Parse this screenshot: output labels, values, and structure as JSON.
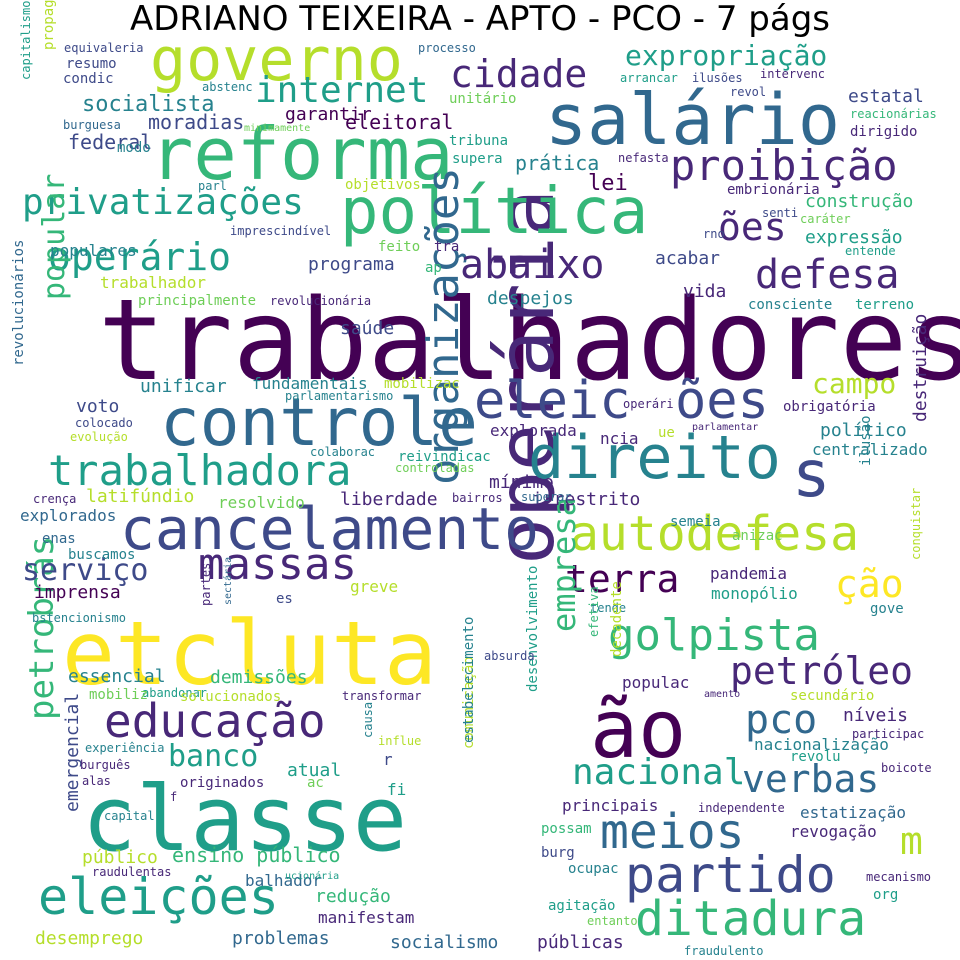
{
  "title": "ADRIANO TEIXEIRA - APTO - PCO - 7 págs",
  "palette": {
    "dark_purple": "#440154",
    "indigo": "#482878",
    "blue": "#3e4a89",
    "steel_blue": "#31688e",
    "teal": "#26828e",
    "green_teal": "#1f9e89",
    "green": "#35b779",
    "light_green": "#6ece58",
    "lime": "#b5de2b",
    "yellow": "#fde725",
    "background": "#ffffff"
  },
  "words": [
    {
      "text": "trabalhadores",
      "color": "dark_purple"
    },
    {
      "text": "operária",
      "color": "indigo"
    },
    {
      "text": "classe",
      "color": "green_teal"
    },
    {
      "text": "luta",
      "color": "yellow"
    },
    {
      "text": "etc",
      "color": "yellow"
    },
    {
      "text": "salário",
      "color": "steel_blue"
    },
    {
      "text": "reforma",
      "color": "green"
    },
    {
      "text": "política",
      "color": "green"
    },
    {
      "text": "governo",
      "color": "lime"
    },
    {
      "text": "ão",
      "color": "dark_purple"
    },
    {
      "text": "controle",
      "color": "steel_blue"
    },
    {
      "text": "direito",
      "color": "teal"
    },
    {
      "text": "s",
      "color": "blue"
    },
    {
      "text": "cancelamento",
      "color": "blue"
    },
    {
      "text": "organizações",
      "color": "steel_blue"
    },
    {
      "text": "eleic",
      "color": "blue"
    },
    {
      "text": "ões",
      "color": "blue"
    },
    {
      "text": "educação",
      "color": "indigo"
    },
    {
      "text": "autodefesa",
      "color": "lime"
    },
    {
      "text": "eleições",
      "color": "green_teal"
    },
    {
      "text": "partido",
      "color": "blue"
    },
    {
      "text": "ditadura",
      "color": "green"
    },
    {
      "text": "meios",
      "color": "steel_blue"
    },
    {
      "text": "golpista",
      "color": "green"
    },
    {
      "text": "trabalhadora",
      "color": "green_teal"
    },
    {
      "text": "massas",
      "color": "indigo"
    },
    {
      "text": "proibição",
      "color": "indigo"
    },
    {
      "text": "abaixo",
      "color": "indigo"
    },
    {
      "text": "operário",
      "color": "green_teal"
    },
    {
      "text": "privatizações",
      "color": "green_teal"
    },
    {
      "text": "cidade",
      "color": "indigo"
    },
    {
      "text": "defesa",
      "color": "indigo"
    },
    {
      "text": "verbas",
      "color": "steel_blue"
    },
    {
      "text": "nacional",
      "color": "green_teal"
    },
    {
      "text": "terra",
      "color": "dark_purple"
    },
    {
      "text": "petrobrás",
      "color": "green"
    },
    {
      "text": "m",
      "color": "lime"
    },
    {
      "text": "pco",
      "color": "steel_blue"
    },
    {
      "text": "petróleo",
      "color": "indigo"
    },
    {
      "text": "internet",
      "color": "green_teal"
    },
    {
      "text": "expropriação",
      "color": "green_teal"
    },
    {
      "text": "ões",
      "color": "indigo"
    },
    {
      "text": "campo",
      "color": "lime"
    },
    {
      "text": "serviço",
      "color": "blue"
    },
    {
      "text": "ção",
      "color": "yellow"
    },
    {
      "text": "empresa",
      "color": "green"
    },
    {
      "text": "popular",
      "color": "green"
    },
    {
      "text": "banco",
      "color": "green_teal"
    },
    {
      "text": "socialista",
      "color": "teal"
    },
    {
      "text": "moradias",
      "color": "blue"
    },
    {
      "text": "garantir",
      "color": "dark_purple"
    },
    {
      "text": "eleitoral",
      "color": "dark_purple"
    },
    {
      "text": "estatal",
      "color": "blue"
    },
    {
      "text": "federal",
      "color": "blue"
    },
    {
      "text": "prática",
      "color": "teal"
    },
    {
      "text": "lei",
      "color": "dark_purple"
    },
    {
      "text": "construção",
      "color": "green"
    },
    {
      "text": "expressão",
      "color": "green_teal"
    },
    {
      "text": "programa",
      "color": "blue"
    },
    {
      "text": "acabar",
      "color": "blue"
    },
    {
      "text": "vida",
      "color": "indigo"
    },
    {
      "text": "saúde",
      "color": "blue"
    },
    {
      "text": "despejos",
      "color": "teal"
    },
    {
      "text": "trabalhador",
      "color": "lime"
    },
    {
      "text": "populares",
      "color": "teal"
    },
    {
      "text": "unificar",
      "color": "teal"
    },
    {
      "text": "fundamentais",
      "color": "teal"
    },
    {
      "text": "voto",
      "color": "blue"
    },
    {
      "text": "político",
      "color": "teal"
    },
    {
      "text": "obrigatória",
      "color": "indigo"
    },
    {
      "text": "centralizado",
      "color": "teal"
    },
    {
      "text": "destruição",
      "color": "indigo"
    },
    {
      "text": "mínimo",
      "color": "indigo"
    },
    {
      "text": "liberdade",
      "color": "indigo"
    },
    {
      "text": "irrestrito",
      "color": "indigo"
    },
    {
      "text": "latifúndio",
      "color": "lime"
    },
    {
      "text": "resolvido",
      "color": "light_green"
    },
    {
      "text": "explorados",
      "color": "steel_blue"
    },
    {
      "text": "explorada",
      "color": "indigo"
    },
    {
      "text": "pandemia",
      "color": "indigo"
    },
    {
      "text": "monopólio",
      "color": "green_teal"
    },
    {
      "text": "imprensa",
      "color": "dark_purple"
    },
    {
      "text": "essencial",
      "color": "teal"
    },
    {
      "text": "demissões",
      "color": "green"
    },
    {
      "text": "ensino público",
      "color": "green"
    },
    {
      "text": "público",
      "color": "lime"
    },
    {
      "text": "atual",
      "color": "green_teal"
    },
    {
      "text": "nacionalização",
      "color": "teal"
    },
    {
      "text": "níveis",
      "color": "indigo"
    },
    {
      "text": "estatização",
      "color": "steel_blue"
    },
    {
      "text": "revogação",
      "color": "indigo"
    },
    {
      "text": "redução",
      "color": "green"
    },
    {
      "text": "balhador",
      "color": "steel_blue"
    },
    {
      "text": "problemas",
      "color": "steel_blue"
    },
    {
      "text": "desemprego",
      "color": "lime"
    },
    {
      "text": "socialismo",
      "color": "steel_blue"
    },
    {
      "text": "públicas",
      "color": "indigo"
    },
    {
      "text": "manifestam",
      "color": "indigo"
    },
    {
      "text": "emergencial",
      "color": "blue"
    },
    {
      "text": "principais",
      "color": "indigo"
    },
    {
      "text": "agitação",
      "color": "green_teal"
    },
    {
      "text": "ocupac",
      "color": "teal"
    },
    {
      "text": "comunicação",
      "color": "lime"
    },
    {
      "text": "estabelecimento",
      "color": "teal"
    },
    {
      "text": "desenvolvimento",
      "color": "green_teal"
    },
    {
      "text": "greve",
      "color": "lime"
    },
    {
      "text": "resumo",
      "color": "blue"
    },
    {
      "text": "condic",
      "color": "blue"
    },
    {
      "text": "propaganda",
      "color": "lime"
    },
    {
      "text": "equivaleria",
      "color": "blue"
    },
    {
      "text": "processo",
      "color": "steel_blue"
    },
    {
      "text": "unitário",
      "color": "light_green"
    },
    {
      "text": "tribuna",
      "color": "green_teal"
    },
    {
      "text": "supera",
      "color": "green_teal"
    },
    {
      "text": "nefasta",
      "color": "indigo"
    },
    {
      "text": "objetivos",
      "color": "lime"
    },
    {
      "text": "modo",
      "color": "teal"
    },
    {
      "text": "burguesa",
      "color": "steel_blue"
    },
    {
      "text": "capitalismo",
      "color": "green_teal"
    },
    {
      "text": "parl",
      "color": "teal"
    },
    {
      "text": "imprescindível",
      "color": "blue"
    },
    {
      "text": "feito",
      "color": "light_green"
    },
    {
      "text": "tra",
      "color": "indigo"
    },
    {
      "text": "rno",
      "color": "blue"
    },
    {
      "text": "ap",
      "color": "green"
    },
    {
      "text": "revolucionária",
      "color": "indigo"
    },
    {
      "text": "principalmente",
      "color": "light_green"
    },
    {
      "text": "arrancar",
      "color": "green_teal"
    },
    {
      "text": "ilusões",
      "color": "blue"
    },
    {
      "text": "intervenc",
      "color": "indigo"
    },
    {
      "text": "revol",
      "color": "blue"
    },
    {
      "text": "reacionárias",
      "color": "green"
    },
    {
      "text": "dirigido",
      "color": "indigo"
    },
    {
      "text": "embrionária",
      "color": "indigo"
    },
    {
      "text": "senti",
      "color": "blue"
    },
    {
      "text": "caráter",
      "color": "light_green"
    },
    {
      "text": "entende",
      "color": "green_teal"
    },
    {
      "text": "consciente",
      "color": "teal"
    },
    {
      "text": "terreno",
      "color": "green_teal"
    },
    {
      "text": "abstenc",
      "color": "teal"
    },
    {
      "text": "minimamente",
      "color": "light_green"
    },
    {
      "text": "mobilizac",
      "color": "lime"
    },
    {
      "text": "parlamentarismo",
      "color": "teal"
    },
    {
      "text": "operári",
      "color": "indigo"
    },
    {
      "text": "parlamentar",
      "color": "indigo"
    },
    {
      "text": "ncia",
      "color": "indigo"
    },
    {
      "text": "ue",
      "color": "lime"
    },
    {
      "text": "colaborac",
      "color": "teal"
    },
    {
      "text": "reivindicac",
      "color": "green_teal"
    },
    {
      "text": "controladas",
      "color": "light_green"
    },
    {
      "text": "colocado",
      "color": "blue"
    },
    {
      "text": "evolução",
      "color": "lime"
    },
    {
      "text": "revolucionários",
      "color": "steel_blue"
    },
    {
      "text": "crença",
      "color": "indigo"
    },
    {
      "text": "bairros",
      "color": "indigo"
    },
    {
      "text": "superar",
      "color": "steel_blue"
    },
    {
      "text": "semeia",
      "color": "teal"
    },
    {
      "text": "anizac",
      "color": "light_green"
    },
    {
      "text": "ilusão",
      "color": "teal"
    },
    {
      "text": "enas",
      "color": "steel_blue"
    },
    {
      "text": "buscamos",
      "color": "teal"
    },
    {
      "text": "es",
      "color": "blue"
    },
    {
      "text": "bstencionismo",
      "color": "teal"
    },
    {
      "text": "abandonar",
      "color": "green_teal"
    },
    {
      "text": "partes",
      "color": "indigo"
    },
    {
      "text": "sectária",
      "color": "steel_blue"
    },
    {
      "text": "tende",
      "color": "teal"
    },
    {
      "text": "gove",
      "color": "teal"
    },
    {
      "text": "conquistar",
      "color": "lime"
    },
    {
      "text": "absurda",
      "color": "blue"
    },
    {
      "text": "efetiva",
      "color": "green"
    },
    {
      "text": "populac",
      "color": "indigo"
    },
    {
      "text": "mobiliz",
      "color": "light_green"
    },
    {
      "text": "solucionados",
      "color": "lime"
    },
    {
      "text": "transformar",
      "color": "indigo"
    },
    {
      "text": "decadente",
      "color": "lime"
    },
    {
      "text": "amento",
      "color": "indigo"
    },
    {
      "text": "secundário",
      "color": "lime"
    },
    {
      "text": "participac",
      "color": "indigo"
    },
    {
      "text": "revolu",
      "color": "green_teal"
    },
    {
      "text": "experiência",
      "color": "teal"
    },
    {
      "text": "burguês",
      "color": "indigo"
    },
    {
      "text": "alas",
      "color": "indigo"
    },
    {
      "text": "originados",
      "color": "indigo"
    },
    {
      "text": "ac",
      "color": "light_green"
    },
    {
      "text": "influe",
      "color": "lime"
    },
    {
      "text": "causa",
      "color": "teal"
    },
    {
      "text": "r",
      "color": "blue"
    },
    {
      "text": "fi",
      "color": "green_teal"
    },
    {
      "text": "capital",
      "color": "teal"
    },
    {
      "text": "f",
      "color": "indigo"
    },
    {
      "text": "boicote",
      "color": "indigo"
    },
    {
      "text": "independente",
      "color": "indigo"
    },
    {
      "text": "possam",
      "color": "green"
    },
    {
      "text": "burg",
      "color": "blue"
    },
    {
      "text": "raudulentas",
      "color": "indigo"
    },
    {
      "text": "ucionária",
      "color": "green_teal"
    },
    {
      "text": "mecanismo",
      "color": "indigo"
    },
    {
      "text": "org",
      "color": "green_teal"
    },
    {
      "text": "entanto",
      "color": "light_green"
    },
    {
      "text": "fraudulento",
      "color": "teal"
    }
  ]
}
